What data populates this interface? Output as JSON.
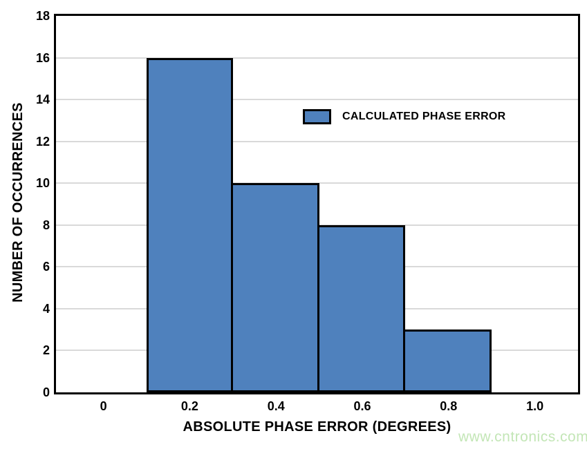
{
  "chart_data": {
    "type": "bar",
    "subtype": "histogram",
    "title": "",
    "xlabel": "ABSOLUTE PHASE ERROR (DEGREES)",
    "ylabel": "NUMBER OF OCCURRENCES",
    "xlim": [
      -0.11,
      1.1
    ],
    "ylim": [
      0,
      18
    ],
    "xticks": [
      0,
      0.2,
      0.4,
      0.6,
      0.8,
      1.0
    ],
    "xtick_labels": [
      "0",
      "0.2",
      "0.4",
      "0.6",
      "0.8",
      "1.0"
    ],
    "yticks": [
      0,
      2,
      4,
      6,
      8,
      10,
      12,
      14,
      16,
      18
    ],
    "bins": [
      {
        "x0": 0.1,
        "x1": 0.3,
        "count": 16
      },
      {
        "x0": 0.3,
        "x1": 0.5,
        "count": 10
      },
      {
        "x0": 0.5,
        "x1": 0.7,
        "count": 8
      },
      {
        "x0": 0.7,
        "x1": 0.9,
        "count": 3
      }
    ],
    "grid": true,
    "legend": {
      "label": "CALCULATED PHASE ERROR",
      "position": "inside-upper-right"
    },
    "colors": {
      "bar_fill": "#4F81BD",
      "bar_border": "#000000",
      "gridline": "#D9D9D9",
      "axis": "#000000",
      "text": "#000000"
    }
  },
  "watermark": {
    "text": "www.cntronics.com",
    "color": "#C3E6B6"
  }
}
